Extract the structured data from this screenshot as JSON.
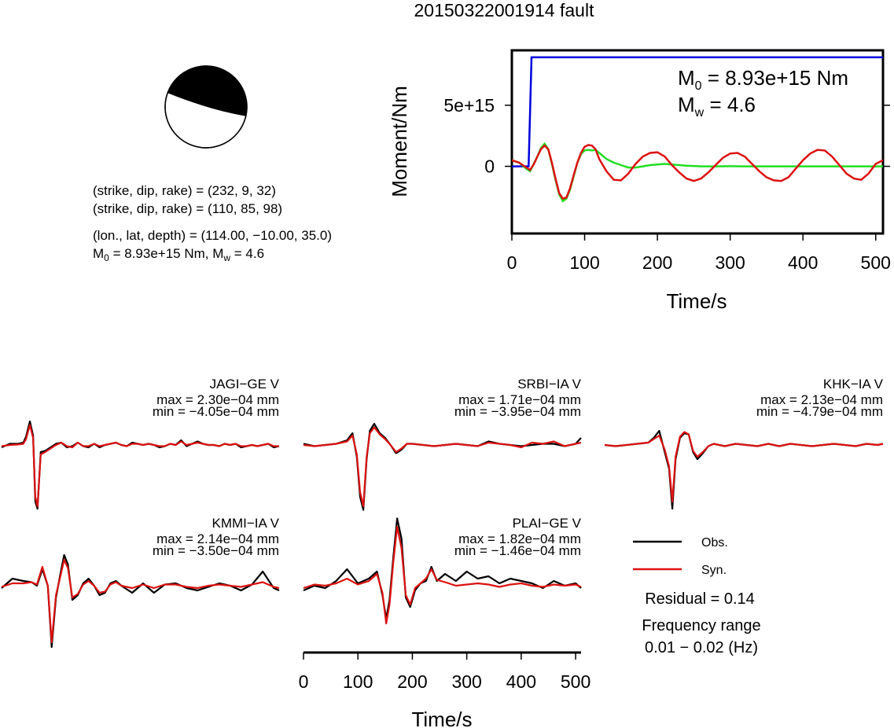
{
  "title": "20150322001914 fault",
  "focal": {
    "line1": "(strike, dip, rake) = (232, 9, 32)",
    "line2": "(strike, dip, rake) = (110, 85, 98)",
    "line3": "(lon., lat, depth) = (114.00, −10.00, 35.0)",
    "m0_prefix": "M",
    "m0_sub": "0",
    "m0_rest": " = 8.93e+15 Nm, M",
    "mw_sub": "w",
    "mw_rest": " = 4.6",
    "colors": {
      "fill": "#000000",
      "outline": "#000000"
    }
  },
  "chart_data": [
    {
      "type": "line",
      "panel": "moment-rate",
      "xlabel": "Time/s",
      "ylabel": "Moment/Nm",
      "xlim": [
        0,
        510
      ],
      "ylim": [
        -5500000000000000.0,
        9500000000000000.0
      ],
      "xticks": [
        0,
        100,
        200,
        300,
        400,
        500
      ],
      "xtick_labels": [
        "0",
        "100",
        "200",
        "300",
        "400",
        "500"
      ],
      "yticks": [
        0,
        5000000000000000.0
      ],
      "ytick_labels": [
        "0",
        "5e+15"
      ],
      "annotation": {
        "m0_main": "M",
        "m0_sub": "0",
        "m0_value": " = 8.93e+15 Nm",
        "mw_main": "M",
        "mw_sub": "w",
        "mw_value": " = 4.6"
      },
      "series": [
        {
          "color": "#0000dd",
          "x": [
            0,
            23,
            27,
            510
          ],
          "y": [
            0,
            0,
            8930000000000000.0,
            8930000000000000.0
          ]
        },
        {
          "color": "#22dd22",
          "x": [
            0,
            10,
            20,
            25,
            30,
            35,
            40,
            45,
            50,
            55,
            60,
            65,
            70,
            75,
            80,
            85,
            90,
            95,
            100,
            105,
            110,
            115,
            120,
            130,
            140,
            150,
            160,
            170,
            180,
            190,
            200,
            210,
            220,
            230,
            240,
            260,
            280,
            300,
            320,
            340,
            360,
            380,
            400,
            420,
            440,
            460,
            480,
            500,
            510
          ],
          "y": [
            500000000000000.0,
            300000000000000.0,
            -200000000000000.0,
            -400000000000000.0,
            200000000000000.0,
            800000000000000.0,
            1500000000000000.0,
            1850000000000000.0,
            1400000000000000.0,
            200000000000000.0,
            -1100000000000000.0,
            -2300000000000000.0,
            -2850000000000000.0,
            -2650000000000000.0,
            -1900000000000000.0,
            -800000000000000.0,
            300000000000000.0,
            1000000000000000.0,
            1300000000000000.0,
            1350000000000000.0,
            1300000000000000.0,
            1350000000000000.0,
            1100000000000000.0,
            600000000000000.0,
            300000000000000.0,
            100000000000000.0,
            -100000000000000.0,
            -100000000000000.0,
            0,
            100000000000000.0,
            150000000000000.0,
            200000000000000.0,
            150000000000000.0,
            100000000000000.0,
            50000000000000.0,
            0,
            0,
            10000000000000.0,
            0,
            0,
            0,
            0,
            0,
            0,
            0,
            0,
            0,
            0,
            0
          ]
        },
        {
          "color": "#dd1111",
          "x": [
            0,
            10,
            20,
            25,
            30,
            35,
            40,
            45,
            50,
            55,
            60,
            65,
            70,
            75,
            80,
            85,
            90,
            95,
            100,
            105,
            110,
            115,
            120,
            130,
            140,
            150,
            160,
            170,
            180,
            190,
            200,
            210,
            220,
            230,
            240,
            250,
            260,
            270,
            280,
            290,
            300,
            310,
            320,
            330,
            340,
            350,
            360,
            370,
            380,
            390,
            400,
            410,
            420,
            430,
            440,
            450,
            460,
            470,
            480,
            490,
            500,
            510
          ],
          "y": [
            500000000000000.0,
            300000000000000.0,
            -100000000000000.0,
            -300000000000000.0,
            150000000000000.0,
            800000000000000.0,
            1400000000000000.0,
            1700000000000000.0,
            1400000000000000.0,
            300000000000000.0,
            -1000000000000000.0,
            -2200000000000000.0,
            -2650000000000000.0,
            -2550000000000000.0,
            -1800000000000000.0,
            -700000000000000.0,
            300000000000000.0,
            1100000000000000.0,
            1600000000000000.0,
            1750000000000000.0,
            1700000000000000.0,
            1400000000000000.0,
            600000000000000.0,
            -400000000000000.0,
            -1100000000000000.0,
            -1150000000000000.0,
            -600000000000000.0,
            200000000000000.0,
            800000000000000.0,
            1100000000000000.0,
            1150000000000000.0,
            800000000000000.0,
            100000000000000.0,
            -500000000000000.0,
            -1000000000000000.0,
            -1200000000000000.0,
            -1000000000000000.0,
            -500000000000000.0,
            100000000000000.0,
            700000000000000.0,
            1050000000000000.0,
            1100000000000000.0,
            800000000000000.0,
            200000000000000.0,
            -400000000000000.0,
            -900000000000000.0,
            -1150000000000000.0,
            -1200000000000000.0,
            -900000000000000.0,
            -200000000000000.0,
            500000000000000.0,
            1050000000000000.0,
            1350000000000000.0,
            1300000000000000.0,
            800000000000000.0,
            100000000000000.0,
            -600000000000000.0,
            -1000000000000000.0,
            -1100000000000000.0,
            -600000000000000.0,
            200000000000000.0,
            500000000000000.0
          ]
        }
      ]
    },
    {
      "type": "line",
      "panel": "waveforms",
      "xlabel": "Time/s",
      "xlim": [
        0,
        510
      ],
      "xticks": [
        0,
        100,
        200,
        300,
        400,
        500
      ],
      "xtick_labels": [
        "0",
        "100",
        "200",
        "300",
        "400",
        "500"
      ],
      "legend": [
        {
          "label": "Obs.",
          "color": "#000000"
        },
        {
          "label": "Syn.",
          "color": "#dd1111"
        }
      ],
      "residual": "Residual = 0.14",
      "freq_label": "Frequency range",
      "freq_value": "0.01 − 0.02 (Hz)",
      "stations": [
        {
          "name": "JAGI−GE V",
          "max": "max = 2.30e−04 mm",
          "min": "min = −4.05e−04 mm",
          "t": [
            0,
            15,
            30,
            40,
            45,
            52,
            58,
            62,
            66,
            72,
            80,
            90,
            100,
            110,
            120,
            130,
            140,
            150,
            160,
            170,
            180,
            190,
            200,
            210,
            220,
            230,
            240,
            250,
            260,
            270,
            280,
            290,
            300,
            310,
            320,
            330,
            340,
            350,
            360,
            370,
            380,
            390,
            400,
            410,
            420,
            430,
            440,
            450,
            460,
            470,
            480,
            490,
            500,
            510
          ],
          "obs": [
            -0.1,
            0.05,
            0.05,
            0.1,
            0.35,
            1.0,
            0.4,
            -2.4,
            -2.7,
            -0.3,
            -0.25,
            -0.1,
            0.05,
            0.1,
            -0.1,
            -0.05,
            0.1,
            -0.05,
            -0.1,
            0.05,
            -0.1,
            0.0,
            0.05,
            0.1,
            0.0,
            -0.05,
            0.1,
            0.05,
            0.0,
            0.05,
            0.0,
            -0.1,
            -0.05,
            0.05,
            0.0,
            0.2,
            -0.05,
            0.05,
            0.15,
            0.05,
            0.0,
            0.0,
            -0.05,
            0.05,
            0.0,
            0.05,
            -0.1,
            -0.05,
            0.0,
            -0.05,
            0.0,
            0.05,
            -0.1,
            -0.05
          ],
          "syn": [
            -0.05,
            0.0,
            0.02,
            0.05,
            0.25,
            0.85,
            0.3,
            -2.2,
            -2.6,
            -0.4,
            -0.3,
            -0.15,
            0.0,
            0.1,
            -0.05,
            -0.1,
            0.1,
            -0.05,
            -0.05,
            0.05,
            -0.05,
            0.0,
            0.05,
            0.1,
            0.0,
            -0.05,
            0.05,
            0.05,
            0.0,
            0.05,
            0.0,
            -0.05,
            -0.05,
            0.05,
            0.0,
            0.15,
            0.0,
            0.05,
            0.1,
            0.05,
            0.0,
            0.0,
            -0.05,
            0.05,
            0.0,
            0.05,
            -0.05,
            -0.05,
            0.0,
            -0.05,
            0.0,
            0.05,
            -0.05,
            -0.05
          ]
        },
        {
          "name": "SRBI−IA V",
          "max": "max = 1.71e−04 mm",
          "min": "min = −3.95e−04 mm",
          "t": [
            0,
            20,
            40,
            60,
            80,
            90,
            98,
            104,
            110,
            116,
            122,
            130,
            140,
            150,
            160,
            170,
            180,
            190,
            200,
            220,
            240,
            260,
            280,
            300,
            320,
            340,
            360,
            380,
            400,
            420,
            440,
            460,
            480,
            500,
            510
          ],
          "obs": [
            0.05,
            -0.05,
            0.0,
            0.05,
            0.2,
            0.5,
            -0.5,
            -2.2,
            -2.75,
            -0.6,
            0.6,
            0.9,
            0.5,
            0.3,
            0.0,
            -0.35,
            -0.2,
            0.05,
            0.05,
            0.0,
            -0.05,
            0.0,
            0.05,
            0.0,
            -0.05,
            0.15,
            0.05,
            0.0,
            -0.05,
            0.0,
            0.05,
            0.05,
            -0.05,
            0.05,
            0.3
          ],
          "syn": [
            0.0,
            -0.05,
            0.0,
            0.05,
            0.15,
            0.4,
            -0.4,
            -2.0,
            -2.6,
            -0.5,
            0.5,
            0.75,
            0.45,
            0.25,
            0.0,
            -0.3,
            -0.15,
            0.05,
            0.05,
            0.0,
            -0.05,
            0.0,
            0.05,
            0.0,
            -0.05,
            0.1,
            0.05,
            0.0,
            -0.1,
            0.1,
            0.05,
            0.15,
            -0.05,
            0.05,
            0.1
          ]
        },
        {
          "name": "KHK−IA V",
          "max": "max = 2.13e−04 mm",
          "min": "min = −4.79e−04 mm",
          "t": [
            0,
            20,
            40,
            60,
            80,
            90,
            100,
            110,
            118,
            124,
            130,
            138,
            146,
            154,
            162,
            170,
            180,
            190,
            200,
            220,
            240,
            260,
            280,
            300,
            320,
            340,
            360,
            380,
            400,
            420,
            440,
            460,
            480,
            500,
            510
          ],
          "obs": [
            0.0,
            -0.05,
            0.0,
            0.05,
            0.1,
            0.3,
            0.6,
            -0.3,
            -1.0,
            -2.7,
            -0.6,
            0.3,
            0.5,
            0.45,
            -0.3,
            -0.6,
            -0.35,
            -0.05,
            0.05,
            -0.05,
            0.05,
            0.0,
            -0.05,
            0.05,
            -0.05,
            0.05,
            0.0,
            -0.05,
            0.0,
            0.05,
            0.0,
            -0.05,
            0.05,
            0.0,
            0.05
          ],
          "syn": [
            0.0,
            -0.05,
            0.0,
            0.05,
            0.1,
            0.25,
            0.4,
            -0.2,
            -0.9,
            -2.4,
            -0.5,
            0.35,
            0.55,
            0.45,
            -0.25,
            -0.5,
            -0.3,
            -0.05,
            0.05,
            -0.05,
            0.05,
            0.0,
            -0.05,
            0.05,
            -0.05,
            0.05,
            0.0,
            -0.05,
            0.0,
            0.05,
            0.0,
            -0.05,
            0.05,
            0.0,
            0.05
          ]
        },
        {
          "name": "KMMI−IA V",
          "max": "max = 2.14e−04 mm",
          "min": "min = −3.50e−04 mm",
          "t": [
            0,
            20,
            40,
            55,
            65,
            75,
            85,
            92,
            100,
            108,
            115,
            122,
            130,
            140,
            150,
            160,
            170,
            180,
            190,
            200,
            210,
            220,
            240,
            260,
            280,
            300,
            320,
            340,
            360,
            380,
            400,
            420,
            440,
            460,
            480,
            500,
            510
          ],
          "obs": [
            -0.1,
            0.3,
            0.2,
            0.15,
            0.0,
            0.7,
            0.0,
            -2.6,
            -0.5,
            0.5,
            1.3,
            0.9,
            -0.6,
            -0.4,
            0.1,
            0.3,
            0.0,
            -0.4,
            -0.3,
            0.1,
            0.2,
            0.0,
            -0.3,
            0.1,
            -0.3,
            0.05,
            0.1,
            -0.1,
            -0.2,
            -0.05,
            0.1,
            0.0,
            -0.2,
            0.05,
            0.6,
            -0.1,
            -0.2
          ],
          "syn": [
            -0.05,
            0.1,
            0.1,
            0.15,
            0.05,
            0.8,
            0.0,
            -2.4,
            -0.4,
            0.4,
            1.1,
            0.75,
            -0.5,
            -0.35,
            0.05,
            0.2,
            0.0,
            -0.3,
            -0.25,
            0.05,
            0.15,
            0.0,
            -0.1,
            0.05,
            -0.1,
            0.05,
            0.05,
            -0.05,
            -0.1,
            0.0,
            0.05,
            0.0,
            -0.05,
            0.05,
            0.15,
            -0.05,
            -0.1
          ]
        },
        {
          "name": "PLAI−GE V",
          "max": "max = 1.82e−04 mm",
          "min": "min = −1.46e−04 mm",
          "t": [
            0,
            20,
            40,
            60,
            80,
            100,
            120,
            135,
            145,
            152,
            158,
            165,
            172,
            180,
            188,
            196,
            205,
            215,
            225,
            235,
            245,
            260,
            280,
            300,
            320,
            340,
            360,
            380,
            400,
            420,
            440,
            460,
            480,
            500,
            510
          ],
          "obs": [
            -0.2,
            0.0,
            -0.1,
            0.2,
            0.7,
            0.1,
            0.3,
            0.6,
            -0.4,
            -1.4,
            -0.6,
            1.2,
            2.85,
            2.0,
            -0.5,
            -0.9,
            -0.2,
            0.1,
            0.2,
            0.8,
            0.2,
            0.5,
            0.2,
            0.6,
            0.3,
            0.4,
            0.1,
            0.3,
            0.2,
            0.1,
            -0.1,
            0.2,
            0.0,
            0.1,
            -0.1
          ],
          "syn": [
            -0.1,
            0.05,
            0.0,
            0.1,
            0.3,
            0.05,
            0.2,
            0.5,
            -0.3,
            -1.6,
            -0.8,
            1.0,
            2.5,
            1.6,
            -0.4,
            -0.8,
            -0.1,
            0.1,
            0.3,
            0.7,
            0.25,
            0.15,
            0.0,
            0.05,
            0.1,
            0.05,
            -0.05,
            0.05,
            0.1,
            0.0,
            -0.05,
            0.05,
            0.0,
            0.05,
            -0.05
          ]
        }
      ]
    }
  ]
}
